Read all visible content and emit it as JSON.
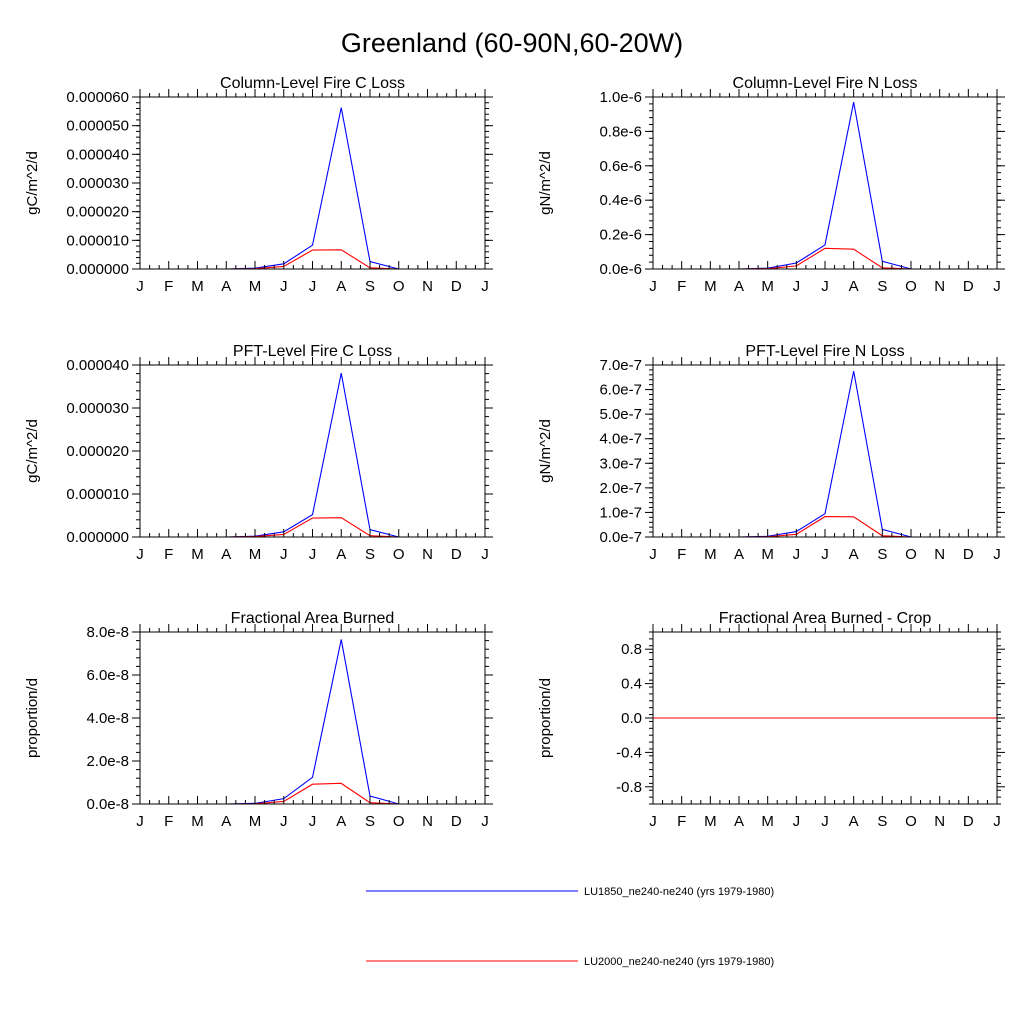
{
  "page_title": "Greenland (60-90N,60-20W)",
  "colors": {
    "series1": "#0000ff",
    "series2": "#ff0000"
  },
  "legend": [
    {
      "label": "LU1850_ne240-ne240 (yrs 1979-1980)",
      "color": "#0000ff"
    },
    {
      "label": "LU2000_ne240-ne240 (yrs 1979-1980)",
      "color": "#ff0000"
    }
  ],
  "chart_data": [
    {
      "type": "line",
      "title": "Column-Level Fire C Loss",
      "ylabel": "gC/m^2/d",
      "ylim": [
        0,
        6e-05
      ],
      "yticks": [
        0,
        1e-05,
        2e-05,
        3e-05,
        4e-05,
        5e-05,
        6e-05
      ],
      "ytick_labels": [
        "0.000000",
        "0.000010",
        "0.000020",
        "0.000030",
        "0.000040",
        "0.000050",
        "0.000060"
      ],
      "x": [
        "J",
        "F",
        "M",
        "A",
        "M",
        "J",
        "J",
        "A",
        "S",
        "O",
        "N",
        "D",
        "J"
      ],
      "series": [
        {
          "values": [
            0,
            0,
            0,
            0,
            3e-07,
            1.8e-06,
            8.3e-06,
            5.63e-05,
            2.6e-06,
            0,
            0,
            0,
            0
          ]
        },
        {
          "values": [
            0,
            0,
            0,
            0,
            1e-07,
            9e-07,
            6.6e-06,
            6.7e-06,
            4e-07,
            0,
            0,
            0,
            0
          ]
        }
      ]
    },
    {
      "type": "line",
      "title": "Column-Level Fire N Loss",
      "ylabel": "gN/m^2/d",
      "ylim": [
        0,
        1e-06
      ],
      "yticks": [
        0,
        2e-07,
        4e-07,
        6e-07,
        8e-07,
        1e-06
      ],
      "ytick_labels": [
        "0.0e-6",
        "0.2e-6",
        "0.4e-6",
        "0.6e-6",
        "0.8e-6",
        "1.0e-6"
      ],
      "x": [
        "J",
        "F",
        "M",
        "A",
        "M",
        "J",
        "J",
        "A",
        "S",
        "O",
        "N",
        "D",
        "J"
      ],
      "series": [
        {
          "values": [
            0,
            0,
            0,
            0,
            5e-09,
            3.5e-08,
            1.4e-07,
            9.7e-07,
            4.5e-08,
            0,
            0,
            0,
            0
          ]
        },
        {
          "values": [
            0,
            0,
            0,
            0,
            2e-09,
            1.8e-08,
            1.2e-07,
            1.15e-07,
            7e-09,
            0,
            0,
            0,
            0
          ]
        }
      ]
    },
    {
      "type": "line",
      "title": "PFT-Level Fire C Loss",
      "ylabel": "gC/m^2/d",
      "ylim": [
        0,
        4e-05
      ],
      "yticks": [
        0,
        1e-05,
        2e-05,
        3e-05,
        4e-05
      ],
      "ytick_labels": [
        "0.000000",
        "0.000010",
        "0.000020",
        "0.000030",
        "0.000040"
      ],
      "x": [
        "J",
        "F",
        "M",
        "A",
        "M",
        "J",
        "J",
        "A",
        "S",
        "O",
        "N",
        "D",
        "J"
      ],
      "series": [
        {
          "values": [
            0,
            0,
            0,
            0,
            2e-07,
            1.2e-06,
            5.2e-06,
            3.81e-05,
            1.7e-06,
            0,
            0,
            0,
            0
          ]
        },
        {
          "values": [
            0,
            0,
            0,
            0,
            1e-07,
            6e-07,
            4.4e-06,
            4.5e-06,
            3e-07,
            0,
            0,
            0,
            0
          ]
        }
      ]
    },
    {
      "type": "line",
      "title": "PFT-Level Fire N Loss",
      "ylabel": "gN/m^2/d",
      "ylim": [
        0,
        7e-07
      ],
      "yticks": [
        0,
        1e-07,
        2e-07,
        3e-07,
        4e-07,
        5e-07,
        6e-07,
        7e-07
      ],
      "ytick_labels": [
        "0.0e-7",
        "1.0e-7",
        "2.0e-7",
        "3.0e-7",
        "4.0e-7",
        "5.0e-7",
        "6.0e-7",
        "7.0e-7"
      ],
      "x": [
        "J",
        "F",
        "M",
        "A",
        "M",
        "J",
        "J",
        "A",
        "S",
        "O",
        "N",
        "D",
        "J"
      ],
      "series": [
        {
          "values": [
            0,
            0,
            0,
            0,
            3e-09,
            2.2e-08,
            9.5e-08,
            6.75e-07,
            3.1e-08,
            0,
            0,
            0,
            0
          ]
        },
        {
          "values": [
            0,
            0,
            0,
            0,
            1e-09,
            1.1e-08,
            8.3e-08,
            8.2e-08,
            5e-09,
            0,
            0,
            0,
            0
          ]
        }
      ]
    },
    {
      "type": "line",
      "title": "Fractional Area Burned",
      "ylabel": "proportion/d",
      "ylim": [
        0,
        8e-08
      ],
      "yticks": [
        0,
        2e-08,
        4e-08,
        6e-08,
        8e-08
      ],
      "ytick_labels": [
        "0.0e-8",
        "2.0e-8",
        "4.0e-8",
        "6.0e-8",
        "8.0e-8"
      ],
      "x": [
        "J",
        "F",
        "M",
        "A",
        "M",
        "J",
        "J",
        "A",
        "S",
        "O",
        "N",
        "D",
        "J"
      ],
      "series": [
        {
          "values": [
            0,
            0,
            0,
            0,
            3e-10,
            2.5e-09,
            1.24e-08,
            7.65e-08,
            3.7e-09,
            0,
            0,
            0,
            0
          ]
        },
        {
          "values": [
            0,
            0,
            0,
            0,
            1e-10,
            1.2e-09,
            9.2e-09,
            9.6e-09,
            6e-10,
            0,
            0,
            0,
            0
          ]
        }
      ]
    },
    {
      "type": "line",
      "title": "Fractional Area Burned - Crop",
      "ylabel": "proportion/d",
      "ylim": [
        -1,
        1
      ],
      "yticks": [
        -0.8,
        -0.4,
        0,
        0.4,
        0.8
      ],
      "ytick_labels": [
        "-0.8",
        "-0.4",
        "0.0",
        "0.4",
        "0.8"
      ],
      "x": [
        "J",
        "F",
        "M",
        "A",
        "M",
        "J",
        "J",
        "A",
        "S",
        "O",
        "N",
        "D",
        "J"
      ],
      "series": [
        {
          "values": [
            0,
            0,
            0,
            0,
            0,
            0,
            0,
            0,
            0,
            0,
            0,
            0,
            0
          ]
        },
        {
          "values": [
            0,
            0,
            0,
            0,
            0,
            0,
            0,
            0,
            0,
            0,
            0,
            0,
            0
          ]
        }
      ]
    }
  ]
}
